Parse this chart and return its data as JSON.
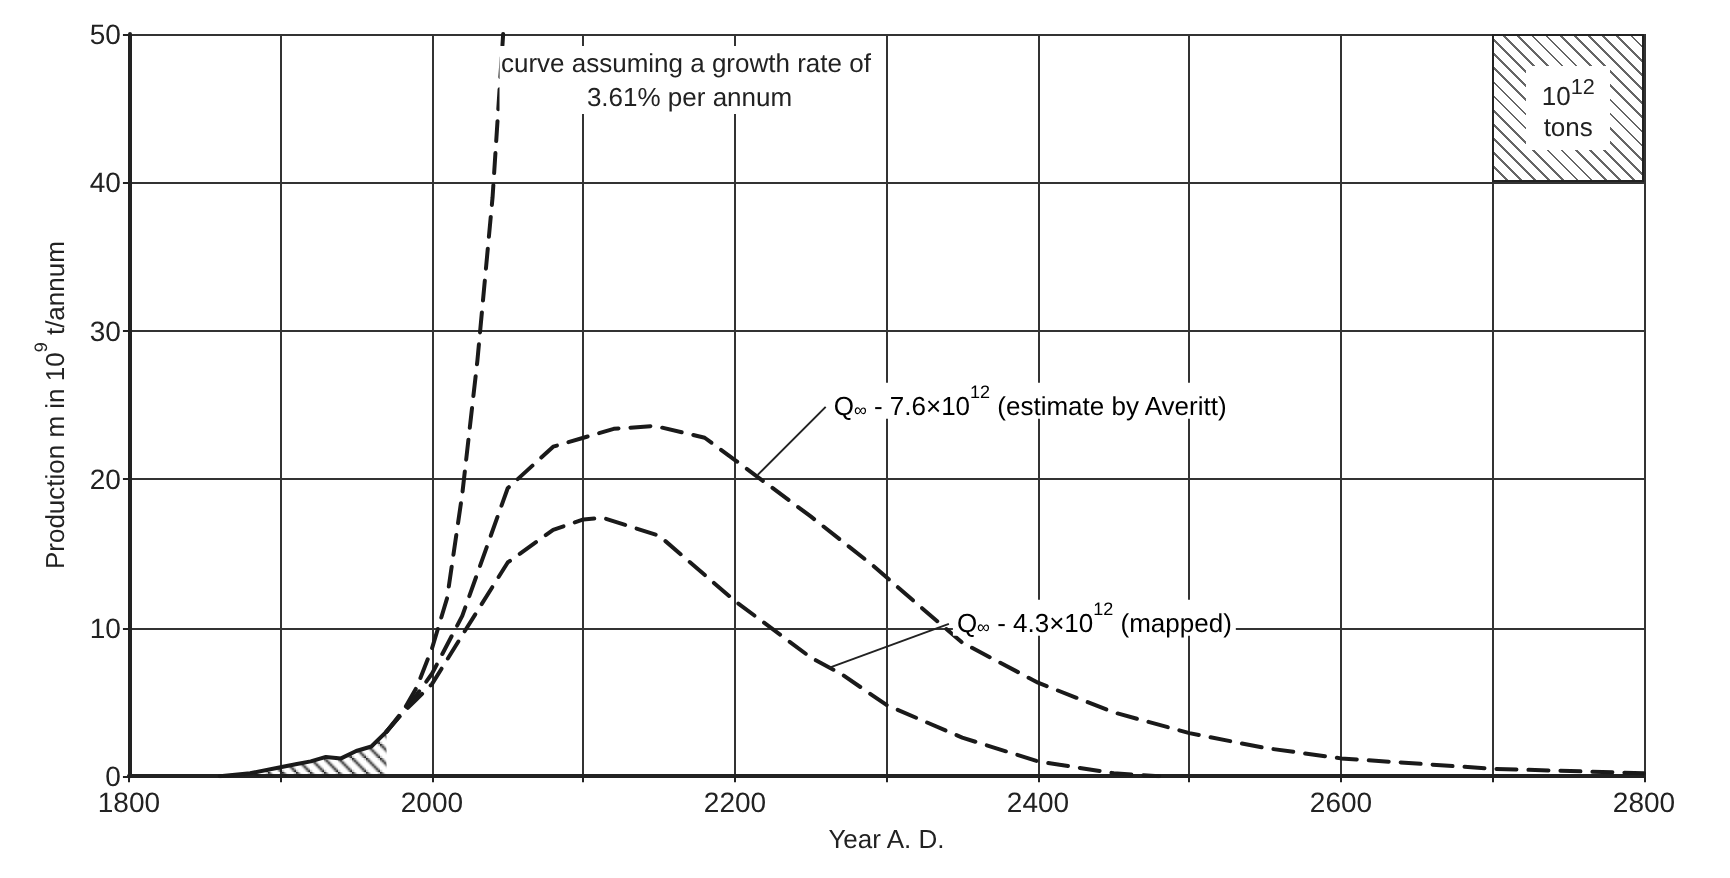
{
  "chart_data": {
    "type": "line",
    "xlabel": "Year A. D.",
    "ylabel": "Production m in 10$^{9}$ t/annum",
    "xlim": [
      1800,
      2800
    ],
    "xticks": [
      1800,
      {
        "value": 1900,
        "label": null
      },
      {
        "value": 2000,
        "label": "2000"
      },
      {
        "value": 2100,
        "label": null
      },
      2200,
      {
        "value": 2300,
        "label": null
      },
      2400,
      {
        "value": 2500,
        "label": null
      },
      2600,
      {
        "value": 2700,
        "label": null
      },
      2800
    ],
    "ylim": [
      0,
      50
    ],
    "yticks": [
      0,
      10,
      20,
      30,
      40,
      50
    ],
    "grid": true,
    "marker": "none",
    "series": [
      {
        "type": "area",
        "color": "#1a1a1a",
        "line_style": "solid",
        "x": [
          1860,
          1880,
          1900,
          1910,
          1920,
          1930,
          1940,
          1950,
          1960,
          1970
        ],
        "values": [
          0,
          0.2,
          0.6,
          0.8,
          1.0,
          1.3,
          1.2,
          1.7,
          2.0,
          3.0
        ]
      },
      {
        "color": "#1a1a1a",
        "line_style": "dashed",
        "x": [
          1970,
          1980,
          1990,
          2000,
          2010,
          2020,
          2030,
          2040,
          2047
        ],
        "values": [
          3,
          4.2,
          6,
          8.6,
          12,
          19,
          28,
          39,
          50
        ]
      },
      {
        "color": "#1a1a1a",
        "line_style": "dashed",
        "x": [
          1970,
          1980,
          1990,
          2000,
          2020,
          2050,
          2080,
          2100,
          2120,
          2147,
          2180,
          2200,
          2250,
          2291,
          2318,
          2350,
          2400,
          2450,
          2500,
          2550,
          2600,
          2700,
          2800
        ],
        "values": [
          3,
          4.3,
          5.5,
          6.9,
          10.8,
          19.4,
          22.2,
          22.8,
          23.4,
          23.6,
          22.8,
          21.3,
          17.5,
          14.2,
          11.8,
          9.0,
          6.3,
          4.3,
          2.9,
          1.9,
          1.2,
          0.5,
          0.2
        ]
      },
      {
        "color": "#1a1a1a",
        "line_style": "dashed",
        "x": [
          1970,
          1980,
          1990,
          2000,
          2020,
          2050,
          2080,
          2100,
          2113,
          2150,
          2200,
          2250,
          2270,
          2300,
          2350,
          2400,
          2450,
          2480
        ],
        "values": [
          3,
          4.2,
          5.2,
          6.2,
          9.5,
          14.4,
          16.6,
          17.3,
          17.4,
          16.2,
          11.8,
          8.0,
          6.9,
          4.8,
          2.6,
          1.0,
          0.2,
          0
        ]
      }
    ],
    "annotations": [
      "curve assuming a growth rate of 3.61% per annum",
      "10$^{12}$ tons",
      {
        "text": "Q$_{∞}$ - 7.6×10$^{12}$ (estimate by Averitt)",
        "x": 2215,
        "y": 20.3
      },
      {
        "text": "Q$_{∞}$ - 4.3×10$^{12}$ (mapped)",
        "x": 2262,
        "y": 7.3
      }
    ]
  }
}
